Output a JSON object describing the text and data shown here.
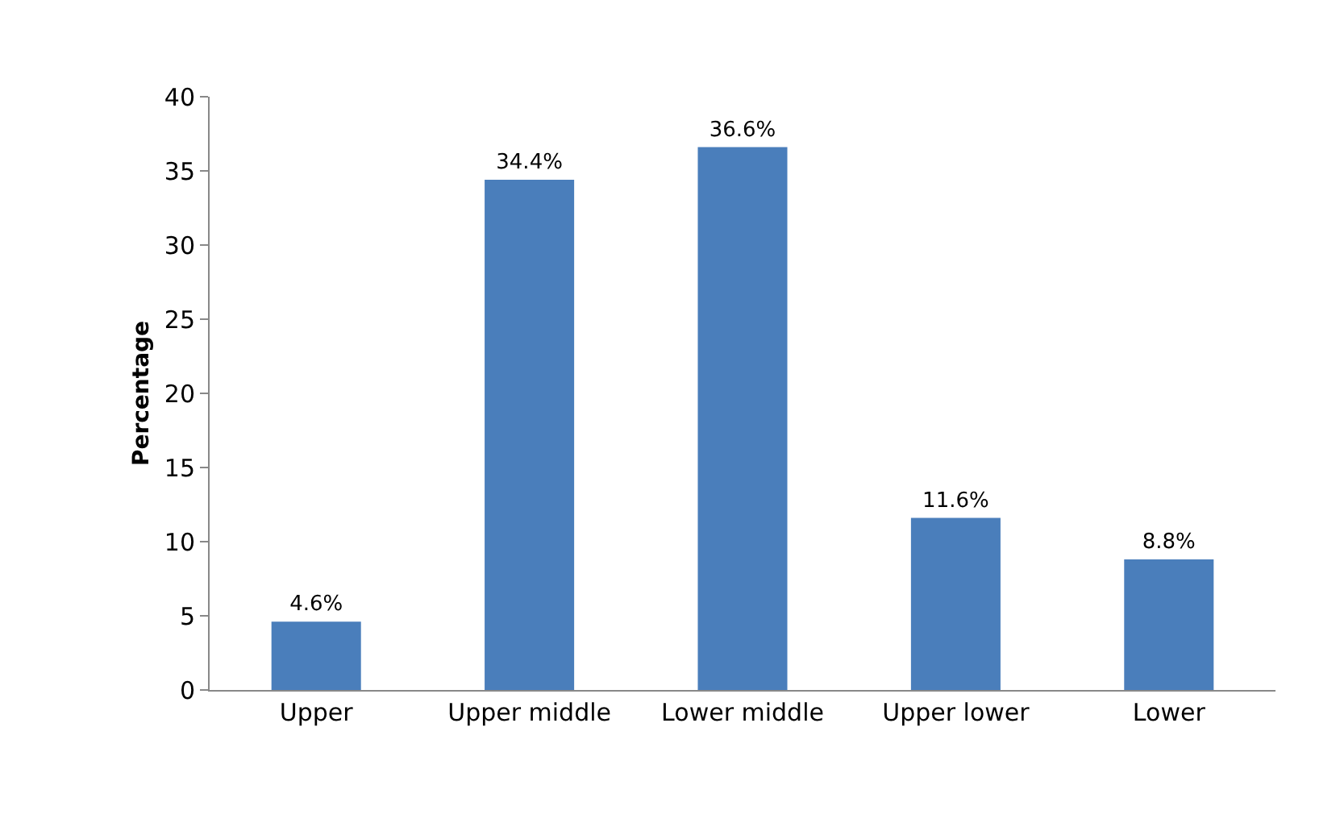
{
  "chart_data": {
    "type": "bar",
    "ylabel": "Percentage",
    "categories": [
      "Upper",
      "Upper middle",
      "Lower middle",
      "Upper lower",
      "Lower"
    ],
    "values": [
      4.6,
      34.4,
      36.6,
      11.6,
      8.8
    ],
    "value_labels": [
      "4.6%",
      "34.4%",
      "36.6%",
      "11.6%",
      "8.8%"
    ],
    "color": "#4a7ebb",
    "ylim": [
      0,
      40
    ],
    "yticks": [
      0,
      5,
      10,
      15,
      20,
      25,
      30,
      35,
      40
    ],
    "grid": false,
    "legend": false
  }
}
